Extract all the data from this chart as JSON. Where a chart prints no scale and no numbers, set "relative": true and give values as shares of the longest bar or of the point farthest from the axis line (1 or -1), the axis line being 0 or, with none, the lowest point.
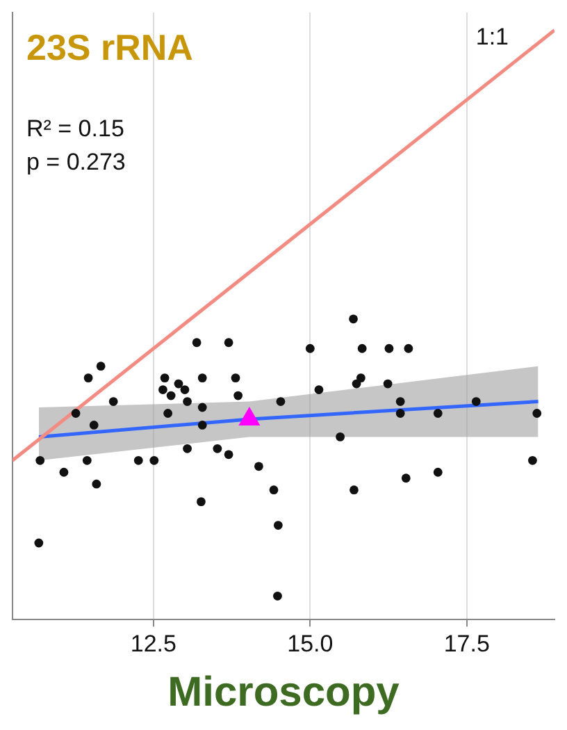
{
  "chart_data": {
    "type": "scatter",
    "title": "23S rRNA",
    "xlabel": "Microscopy",
    "annotations": [
      "1:1",
      "R² = 0.15",
      "p = 0.273"
    ],
    "xlim": [
      10.25,
      18.9
    ],
    "xticks": [
      12.5,
      {
        "value": 15,
        "label": "15.0"
      },
      17.5
    ],
    "relative": true,
    "tick_labels": "x",
    "grid": "x",
    "marker": "circle",
    "series": [
      {
        "type": "line",
        "color": "#f28b82",
        "marker": "none",
        "x": [
          10.25,
          18.9
        ],
        "values": [
          0.27,
          1.0
        ]
      },
      {
        "type": "line",
        "color": "#3366ff",
        "marker": "none",
        "x": [
          10.67,
          14.03,
          18.64
        ],
        "values": [
          0.31,
          0.34,
          0.37
        ],
        "lower": [
          0.27,
          0.31,
          0.31
        ],
        "upper": [
          0.36,
          0.37,
          0.43
        ]
      },
      {
        "color": "#111111",
        "x": [
          10.69,
          11.07,
          10.67,
          11.26,
          11.46,
          11.66,
          11.55,
          11.44,
          11.59,
          11.86,
          12.26,
          12.51,
          12.68,
          12.65,
          12.78,
          12.9,
          13.0,
          12.73,
          13.04,
          13.04,
          13.19,
          13.28,
          13.28,
          13.28,
          13.26,
          13.52,
          13.7,
          13.7,
          13.81,
          13.85,
          14.18,
          14.42,
          14.49,
          14.48,
          14.53,
          15.0,
          15.14,
          15.48,
          15.69,
          15.83,
          15.74,
          15.81,
          15.7,
          16.26,
          16.57,
          16.24,
          16.44,
          16.44,
          16.53,
          17.04,
          17.04,
          17.65,
          18.62,
          18.55
        ],
        "values": [
          0.27,
          0.25,
          0.13,
          0.35,
          0.41,
          0.43,
          0.33,
          0.27,
          0.23,
          0.37,
          0.27,
          0.27,
          0.41,
          0.39,
          0.38,
          0.4,
          0.39,
          0.35,
          0.37,
          0.29,
          0.47,
          0.41,
          0.36,
          0.33,
          0.2,
          0.29,
          0.47,
          0.28,
          0.41,
          0.38,
          0.26,
          0.22,
          0.16,
          0.04,
          0.37,
          0.46,
          0.39,
          0.31,
          0.51,
          0.46,
          0.4,
          0.41,
          0.22,
          0.46,
          0.46,
          0.4,
          0.37,
          0.35,
          0.24,
          0.35,
          0.25,
          0.37,
          0.35,
          0.27
        ]
      },
      {
        "color": "#ff00ff",
        "marker": "triangle",
        "x": [
          14.03
        ],
        "values": [
          0.34
        ]
      }
    ]
  }
}
